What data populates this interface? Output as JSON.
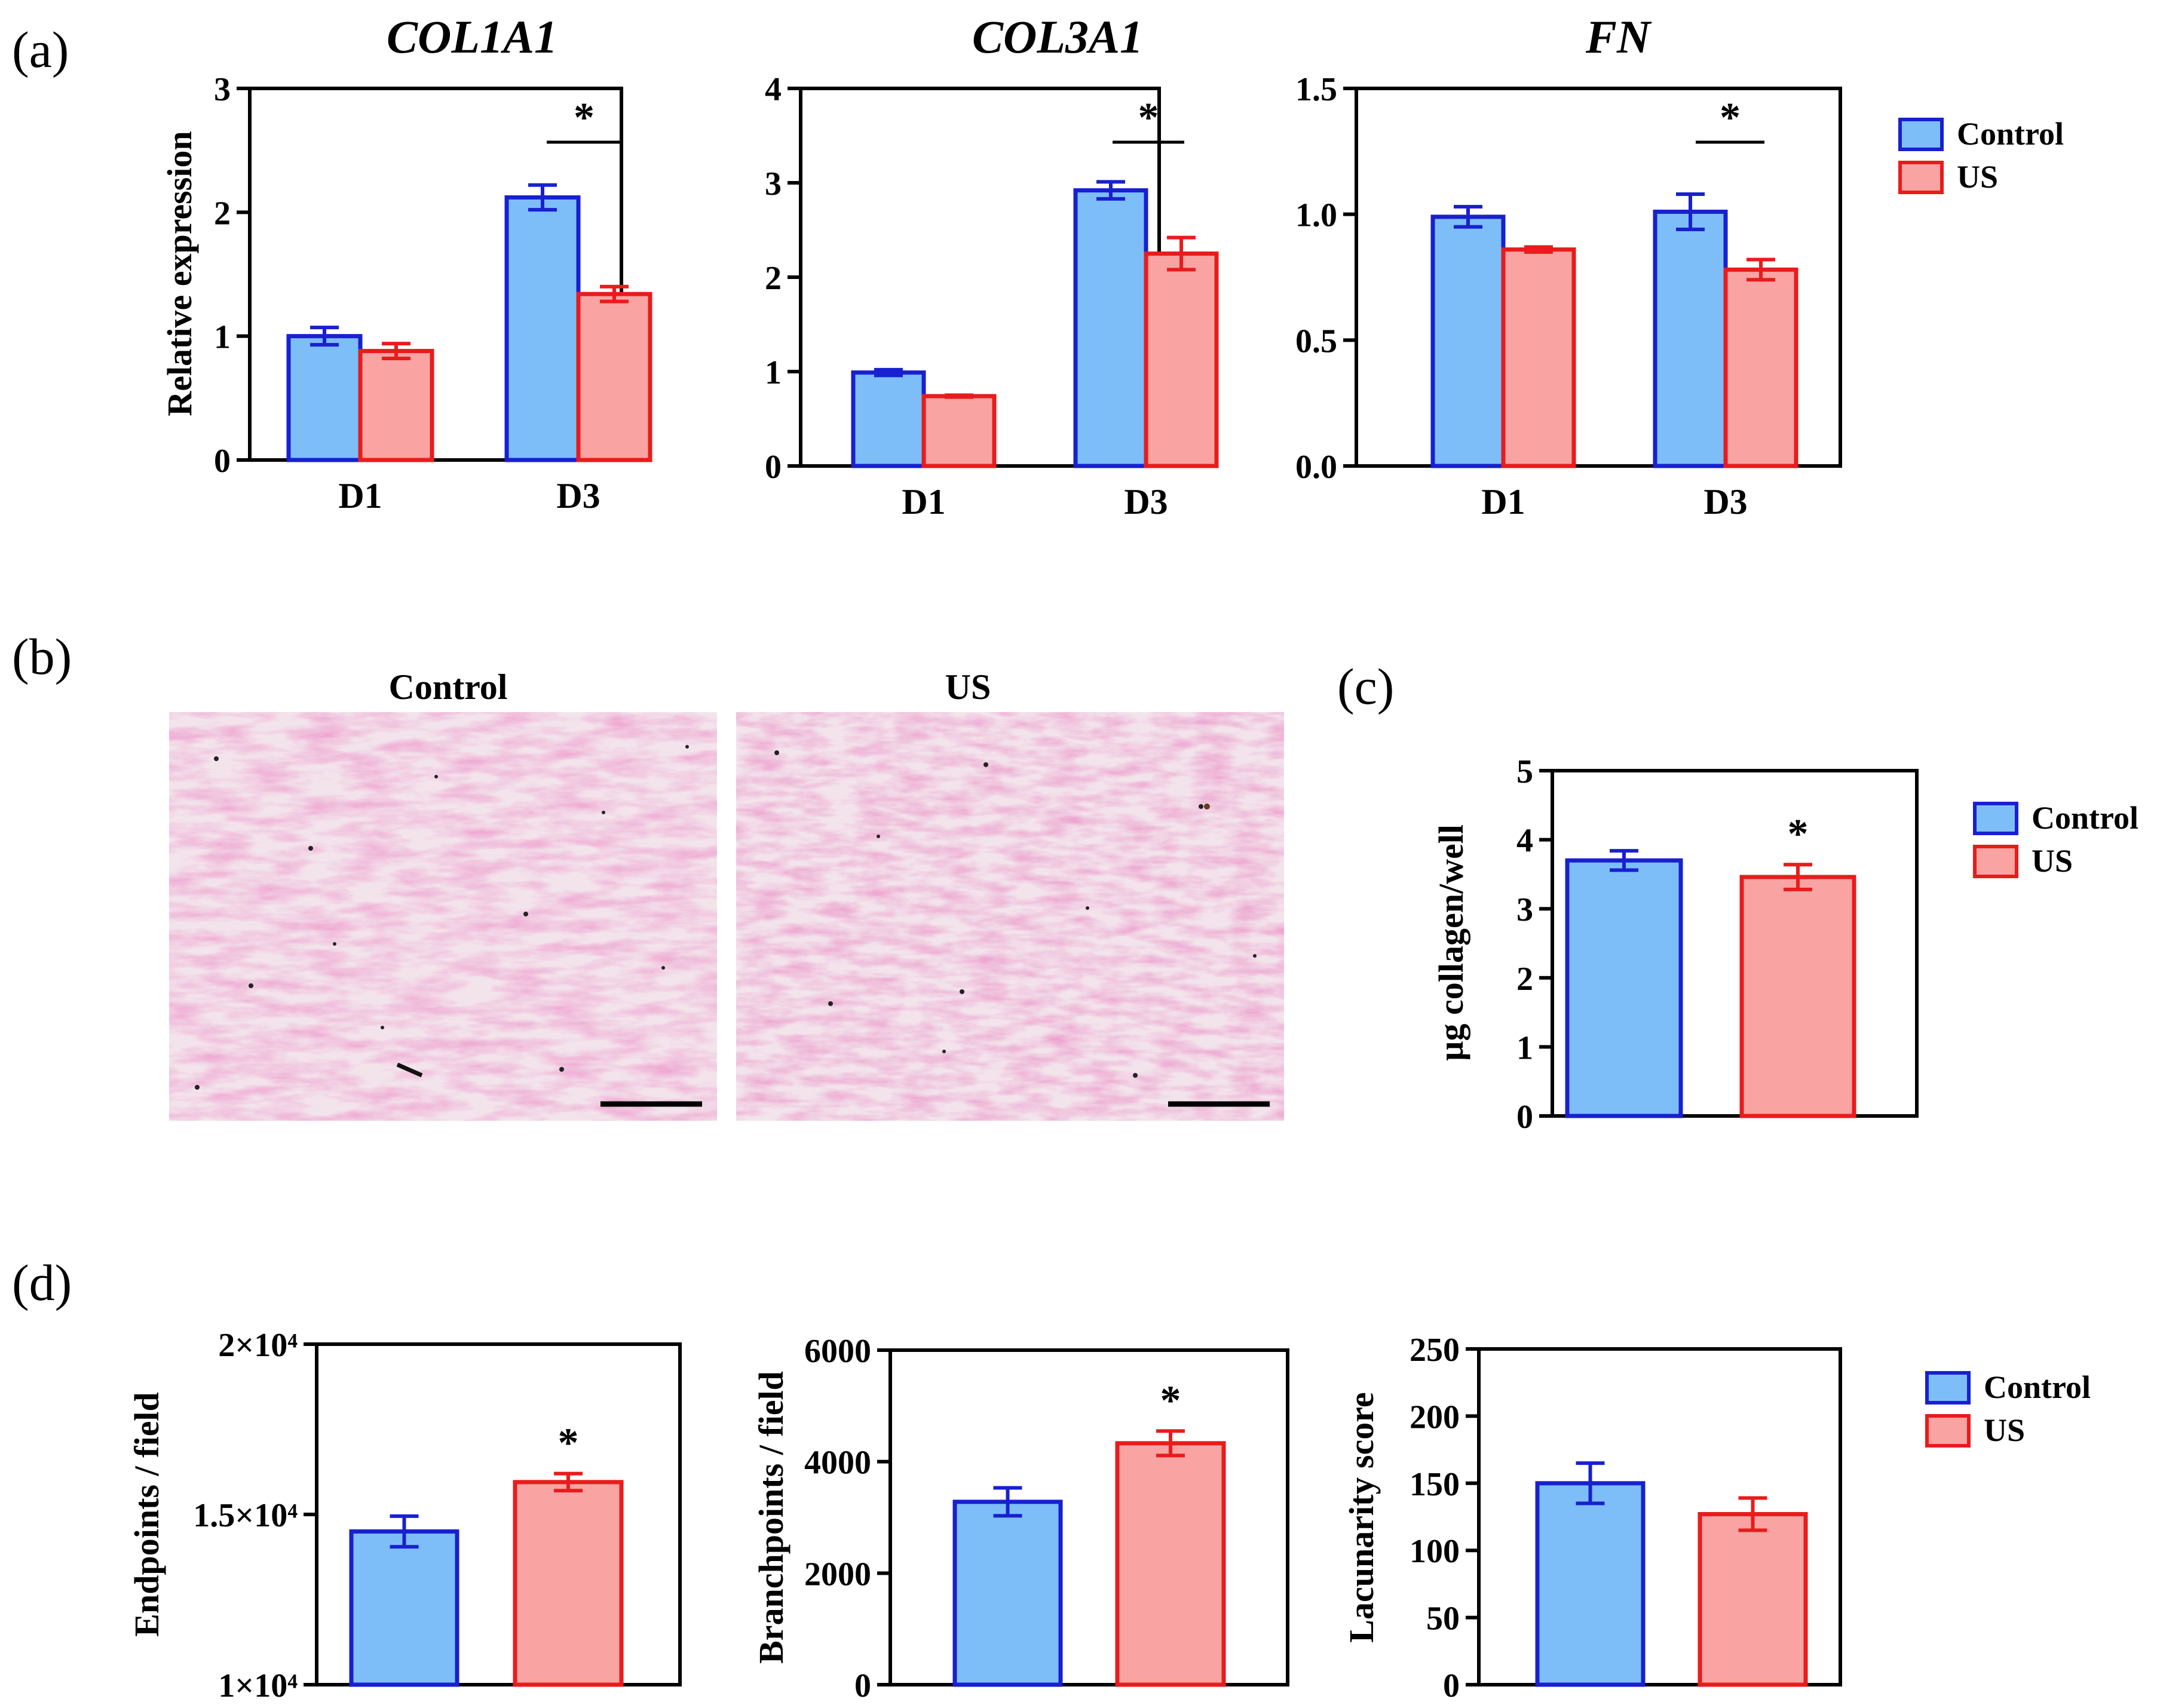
{
  "figure": {
    "panel_labels": {
      "a": "(a)",
      "b": "(b)",
      "c": "(c)",
      "d": "(d)"
    },
    "images": {
      "left_title": "Control",
      "right_title": "US"
    },
    "colors": {
      "control_fill": "#7DBEF9",
      "control_edge": "#1820D0",
      "us_fill": "#F9A3A3",
      "us_edge": "#E81C1C"
    }
  },
  "chart_data": [
    {
      "id": "a1",
      "type": "bar",
      "title": "COL1A1",
      "ylabel": "Relative expression",
      "categories": [
        "D1",
        "D3"
      ],
      "ylim": [
        0,
        3
      ],
      "yticks": [
        "0",
        "1",
        "2",
        "3"
      ],
      "series": [
        {
          "name": "Control",
          "values": [
            1.0,
            2.12
          ],
          "errors": [
            0.07,
            0.1
          ]
        },
        {
          "name": "US",
          "values": [
            0.88,
            1.34
          ],
          "errors": [
            0.06,
            0.06
          ]
        }
      ],
      "significance": [
        {
          "category": "D3",
          "label": "*"
        }
      ]
    },
    {
      "id": "a2",
      "type": "bar",
      "title": "COL3A1",
      "ylabel": "",
      "categories": [
        "D1",
        "D3"
      ],
      "ylim": [
        0,
        4
      ],
      "yticks": [
        "0",
        "1",
        "2",
        "3",
        "4"
      ],
      "series": [
        {
          "name": "Control",
          "values": [
            0.99,
            2.92
          ],
          "errors": [
            0.03,
            0.09
          ]
        },
        {
          "name": "US",
          "values": [
            0.74,
            2.25
          ],
          "errors": [
            0.01,
            0.17
          ]
        }
      ],
      "significance": [
        {
          "category": "D3",
          "label": "*"
        }
      ]
    },
    {
      "id": "a3",
      "type": "bar",
      "title": "FN",
      "ylabel": "",
      "categories": [
        "D1",
        "D3"
      ],
      "ylim": [
        0,
        1.5
      ],
      "yticks": [
        "0.0",
        "0.5",
        "1.0",
        "1.5"
      ],
      "series": [
        {
          "name": "Control",
          "values": [
            0.99,
            1.01
          ],
          "errors": [
            0.04,
            0.07
          ]
        },
        {
          "name": "US",
          "values": [
            0.86,
            0.78
          ],
          "errors": [
            0.01,
            0.04
          ]
        }
      ],
      "significance": [
        {
          "category": "D3",
          "label": "*"
        }
      ],
      "legend": [
        "Control",
        "US"
      ]
    },
    {
      "id": "c",
      "type": "bar",
      "title": "",
      "ylabel": "µg collagen/well",
      "categories": [
        "Control",
        "US"
      ],
      "ylim": [
        0,
        5
      ],
      "yticks": [
        "0",
        "1",
        "2",
        "3",
        "4",
        "5"
      ],
      "values": [
        3.7,
        3.46
      ],
      "errors": [
        0.14,
        0.18
      ],
      "stars": [
        "",
        "*"
      ],
      "legend": [
        "Control",
        "US"
      ]
    },
    {
      "id": "d1",
      "type": "bar",
      "title": "",
      "ylabel": "Endpoints / field",
      "categories": [
        "Control",
        "US"
      ],
      "ylim": [
        10000,
        20000
      ],
      "ytick_values": [
        10000,
        15000,
        20000
      ],
      "yticks": [
        "1×10⁴",
        "1.5×10⁴",
        "2×10⁴"
      ],
      "values": [
        14500,
        15950
      ],
      "errors": [
        450,
        250
      ],
      "stars": [
        "",
        "*"
      ]
    },
    {
      "id": "d2",
      "type": "bar",
      "title": "",
      "ylabel": "Branchpoints / field",
      "categories": [
        "Control",
        "US"
      ],
      "ylim": [
        0,
        6000
      ],
      "ytick_values": [
        0,
        2000,
        4000,
        6000
      ],
      "yticks": [
        "0",
        "2000",
        "4000",
        "6000"
      ],
      "values": [
        3280,
        4330
      ],
      "errors": [
        250,
        220
      ],
      "stars": [
        "",
        "*"
      ]
    },
    {
      "id": "d3",
      "type": "bar",
      "title": "",
      "ylabel": "Lacunarity score",
      "categories": [
        "Control",
        "US"
      ],
      "ylim": [
        0,
        250
      ],
      "ytick_values": [
        0,
        50,
        100,
        150,
        200,
        250
      ],
      "yticks": [
        "0",
        "50",
        "100",
        "150",
        "200",
        "250"
      ],
      "values": [
        150,
        127
      ],
      "errors": [
        15,
        12
      ],
      "stars": [
        "",
        ""
      ],
      "legend": [
        "Control",
        "US"
      ]
    }
  ]
}
